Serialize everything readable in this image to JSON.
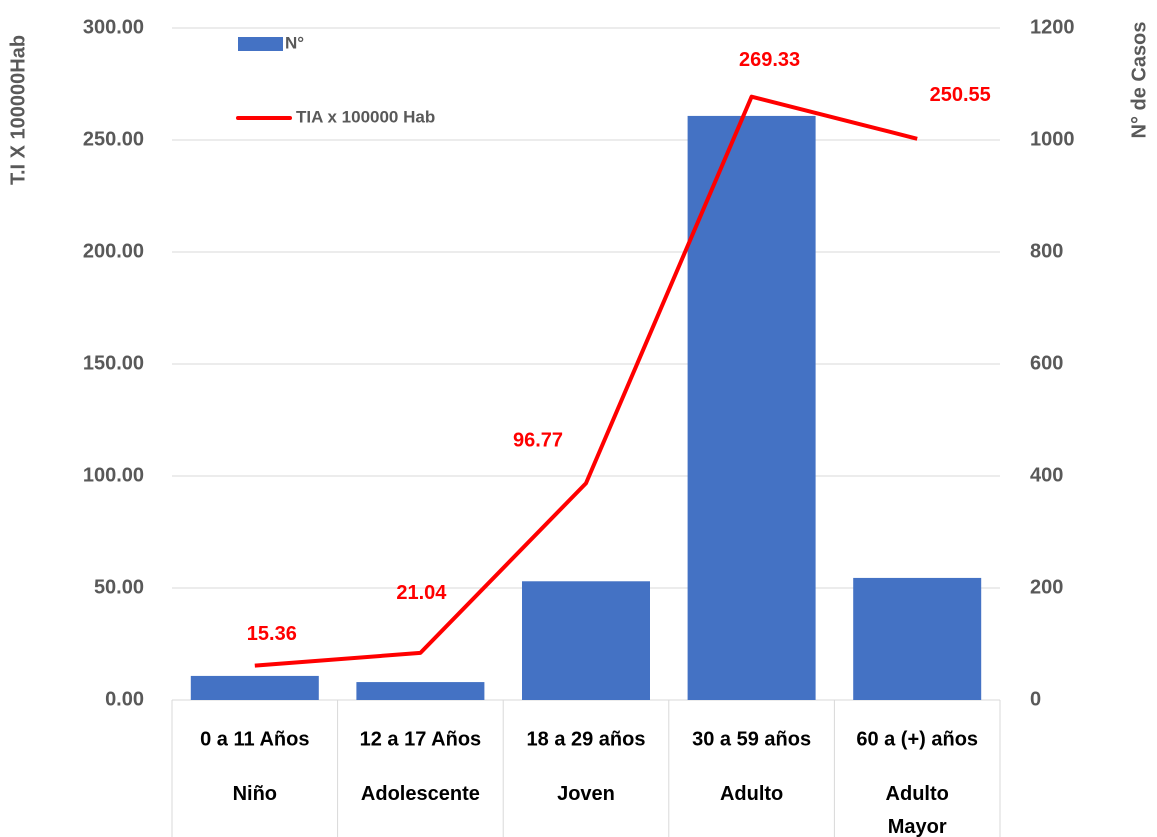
{
  "chart_data": {
    "type": "bar-line",
    "categories": [
      "0 a 11 Años",
      "12 a 17 Años",
      "18 a 29 años",
      "30 a 59 años",
      "60 a (+) años"
    ],
    "groups": [
      "Niño",
      "Adolescente",
      "Joven",
      "Adulto",
      "Adulto Mayor"
    ],
    "series": [
      {
        "name": "N°",
        "type": "bar",
        "axis": "y2",
        "color": "#4472c4",
        "values": [
          43,
          32,
          212,
          1043,
          218
        ]
      },
      {
        "name": "TIA x 100000 Hab",
        "type": "line",
        "axis": "y",
        "color": "#ff0000",
        "values": [
          15.36,
          21.04,
          96.77,
          269.33,
          250.55
        ]
      }
    ],
    "ylabel": "T.I X 100000Hab",
    "y2label": "N° de Casos",
    "ylim": [
      0,
      300
    ],
    "yticks": [
      {
        "value": 0,
        "label": "0.00"
      },
      {
        "value": 50,
        "label": "50.00"
      },
      {
        "value": 100,
        "label": "100.00"
      },
      {
        "value": 150,
        "label": "150.00"
      },
      {
        "value": 200,
        "label": "200.00"
      },
      {
        "value": 250,
        "label": "250.00"
      },
      {
        "value": 300,
        "label": "300.00"
      }
    ],
    "y2lim": [
      0,
      1200
    ],
    "y2ticks": [
      0,
      200,
      400,
      600,
      800,
      1000,
      1200
    ],
    "grid": true,
    "legend": "top-left"
  }
}
